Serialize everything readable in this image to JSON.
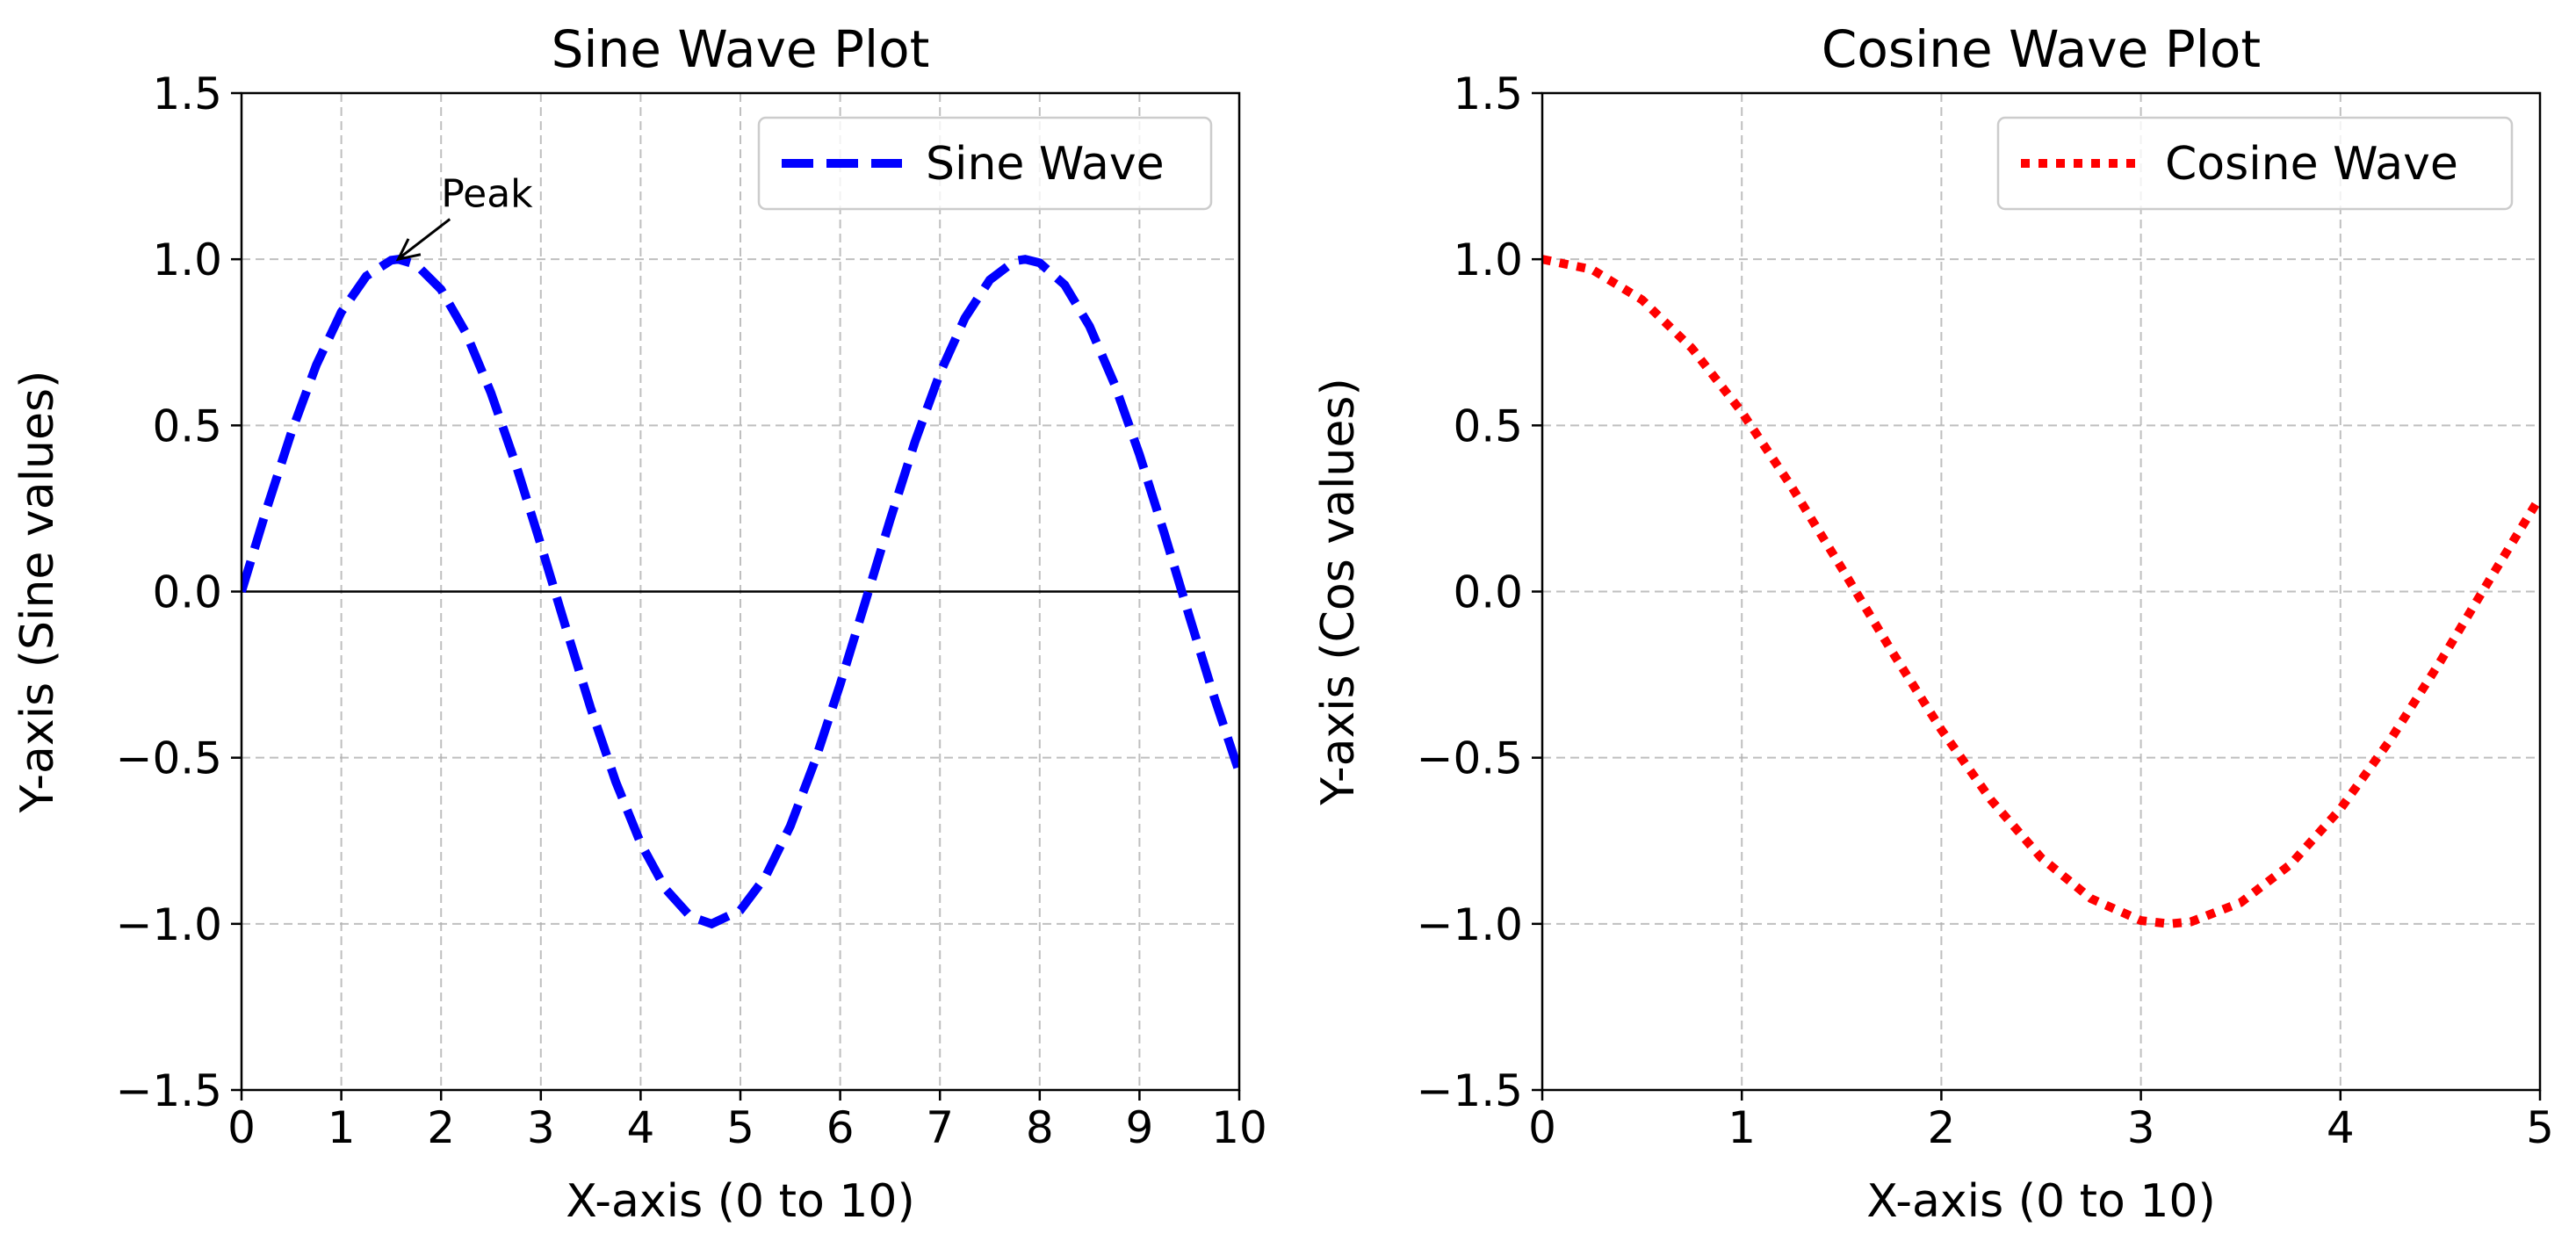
{
  "chart_data": [
    {
      "type": "line",
      "title": "Sine Wave Plot",
      "xlabel": "X-axis (0 to 10)",
      "ylabel": "Y-axis (Sine values)",
      "xlim": [
        0,
        10
      ],
      "ylim": [
        -1.5,
        1.5
      ],
      "xticks": [
        0,
        1,
        2,
        3,
        4,
        5,
        6,
        7,
        8,
        9,
        10
      ],
      "xtick_labels": [
        "0",
        "1",
        "2",
        "3",
        "4",
        "5",
        "6",
        "7",
        "8",
        "9",
        "10"
      ],
      "yticks": [
        -1.5,
        -1.0,
        -0.5,
        0.0,
        0.5,
        1.0,
        1.5
      ],
      "ytick_labels": [
        "−1.5",
        "−1.0",
        "−0.5",
        "0.0",
        "0.5",
        "1.0",
        "1.5"
      ],
      "grid": true,
      "zero_line": true,
      "legend": "upper right",
      "series": [
        {
          "name": "Sine Wave",
          "color": "#0000ff",
          "style": "dashed",
          "x": [
            0,
            0.25,
            0.5,
            0.75,
            1,
            1.25,
            1.5,
            1.571,
            1.75,
            2,
            2.25,
            2.5,
            2.75,
            3,
            3.25,
            3.5,
            3.75,
            4,
            4.25,
            4.5,
            4.712,
            5,
            5.25,
            5.5,
            5.75,
            6,
            6.25,
            6.5,
            6.75,
            7,
            7.25,
            7.5,
            7.75,
            7.854,
            8,
            8.25,
            8.5,
            8.75,
            9,
            9.25,
            9.5,
            9.75,
            10
          ],
          "y": [
            0,
            0.247,
            0.479,
            0.682,
            0.841,
            0.949,
            0.997,
            1.0,
            0.984,
            0.909,
            0.778,
            0.598,
            0.382,
            0.141,
            -0.108,
            -0.351,
            -0.572,
            -0.757,
            -0.895,
            -0.978,
            -1.0,
            -0.959,
            -0.859,
            -0.706,
            -0.508,
            -0.279,
            -0.033,
            0.215,
            0.451,
            0.657,
            0.823,
            0.938,
            0.995,
            1.0,
            0.989,
            0.923,
            0.798,
            0.624,
            0.412,
            0.174,
            -0.075,
            -0.319,
            -0.544
          ]
        }
      ],
      "annotations": [
        {
          "text": "Peak",
          "x": 1.571,
          "y": 1.0,
          "text_x": 2.0,
          "text_y": 1.2
        }
      ]
    },
    {
      "type": "line",
      "title": "Cosine Wave Plot",
      "xlabel": "X-axis (0 to 10)",
      "ylabel": "Y-axis (Cos values)",
      "xlim": [
        0,
        5
      ],
      "ylim": [
        -1.5,
        1.5
      ],
      "xticks": [
        0,
        1,
        2,
        3,
        4,
        5
      ],
      "xtick_labels": [
        "0",
        "1",
        "2",
        "3",
        "4",
        "5"
      ],
      "yticks": [
        -1.5,
        -1.0,
        -0.5,
        0.0,
        0.5,
        1.0,
        1.5
      ],
      "ytick_labels": [
        "−1.5",
        "−1.0",
        "−0.5",
        "0.0",
        "0.5",
        "1.0",
        "1.5"
      ],
      "grid": true,
      "legend": "upper right",
      "series": [
        {
          "name": "Cosine Wave",
          "color": "#ff0000",
          "style": "dotted",
          "x": [
            0,
            0.25,
            0.5,
            0.75,
            1,
            1.25,
            1.5,
            1.75,
            2,
            2.25,
            2.5,
            2.75,
            3,
            3.142,
            3.25,
            3.5,
            3.75,
            4,
            4.25,
            4.5,
            4.75,
            5
          ],
          "y": [
            1.0,
            0.969,
            0.878,
            0.732,
            0.54,
            0.315,
            0.071,
            -0.178,
            -0.416,
            -0.628,
            -0.801,
            -0.924,
            -0.99,
            -1.0,
            -0.994,
            -0.936,
            -0.821,
            -0.654,
            -0.446,
            -0.211,
            0.038,
            0.284
          ]
        }
      ]
    }
  ]
}
